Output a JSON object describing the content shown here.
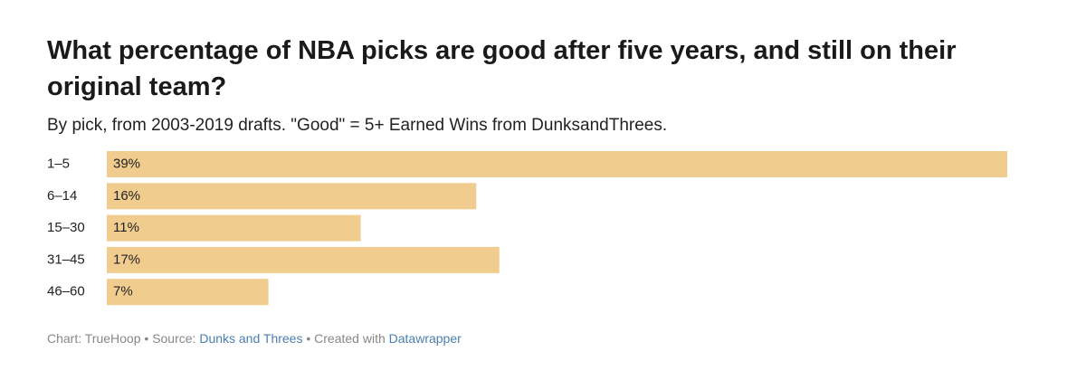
{
  "chart_data": {
    "type": "bar",
    "orientation": "horizontal",
    "title": "What percentage of NBA picks are good after five years, and still on their original team?",
    "subtitle": "By pick, from 2003-2019 drafts. \"Good\" = 5+ Earned Wins from DunksandThrees.",
    "categories": [
      "1–5",
      "6–14",
      "15–30",
      "31–45",
      "46–60"
    ],
    "values": [
      39,
      16,
      11,
      17,
      7
    ],
    "value_labels": [
      "39%",
      "16%",
      "11%",
      "17%",
      "7%"
    ],
    "color": "#f0cd8f",
    "footer": {
      "chart": "Chart: TrueHoop",
      "separator": "•",
      "source_label": "Source:",
      "source": "Dunks and Threes",
      "created_label": "Created with",
      "created": "Datawrapper"
    }
  }
}
